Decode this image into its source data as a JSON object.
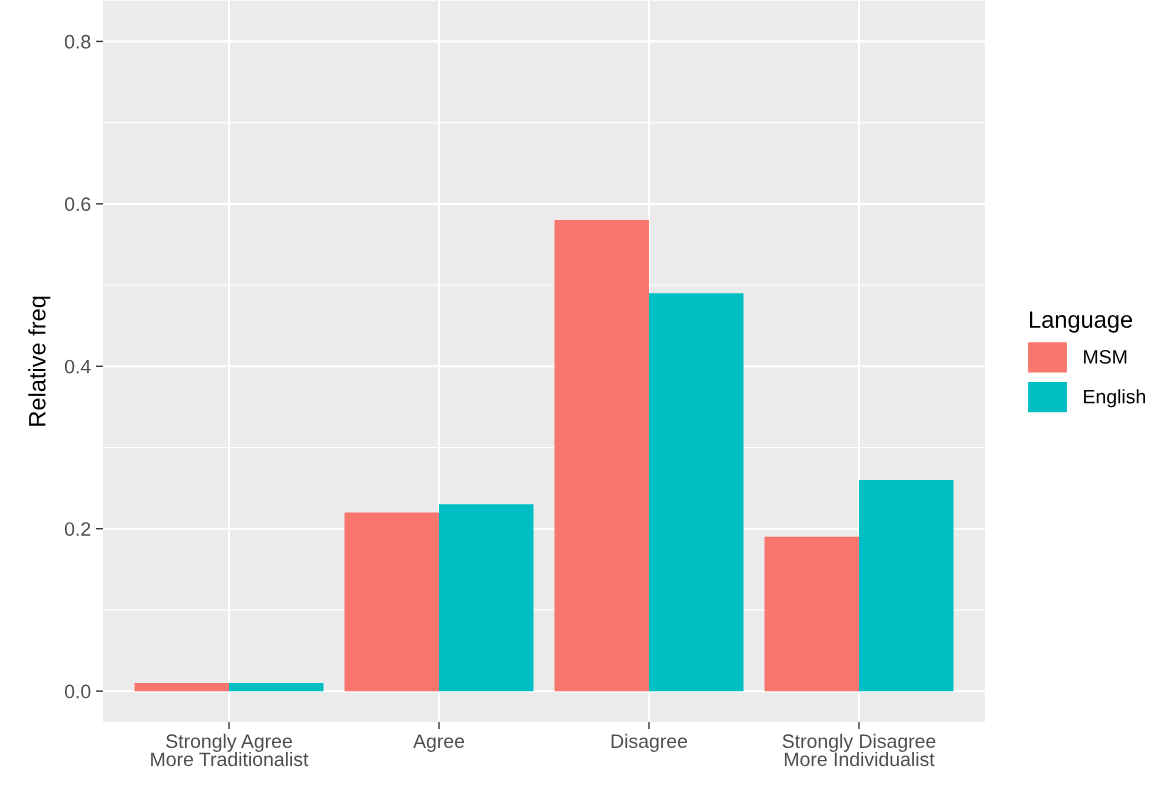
{
  "chart_data": {
    "type": "bar",
    "ylabel": "Relative freq",
    "legend_title": "Language",
    "categories": [
      "Strongly Agree\nMore Traditionalist",
      "Agree",
      "Disagree",
      "Strongly Disagree\nMore Individualist"
    ],
    "series": [
      {
        "name": "MSM",
        "color": "#f8766d",
        "values": [
          0.01,
          0.22,
          0.58,
          0.19
        ]
      },
      {
        "name": "English",
        "color": "#00bfc4",
        "values": [
          0.01,
          0.23,
          0.49,
          0.26
        ]
      }
    ],
    "ylim": [
      -0.038,
      0.85
    ],
    "yticks": [
      {
        "value": 0,
        "label": "0.0"
      },
      0.2,
      0.4,
      0.6,
      0.8
    ],
    "grid": true,
    "legend": "right"
  }
}
